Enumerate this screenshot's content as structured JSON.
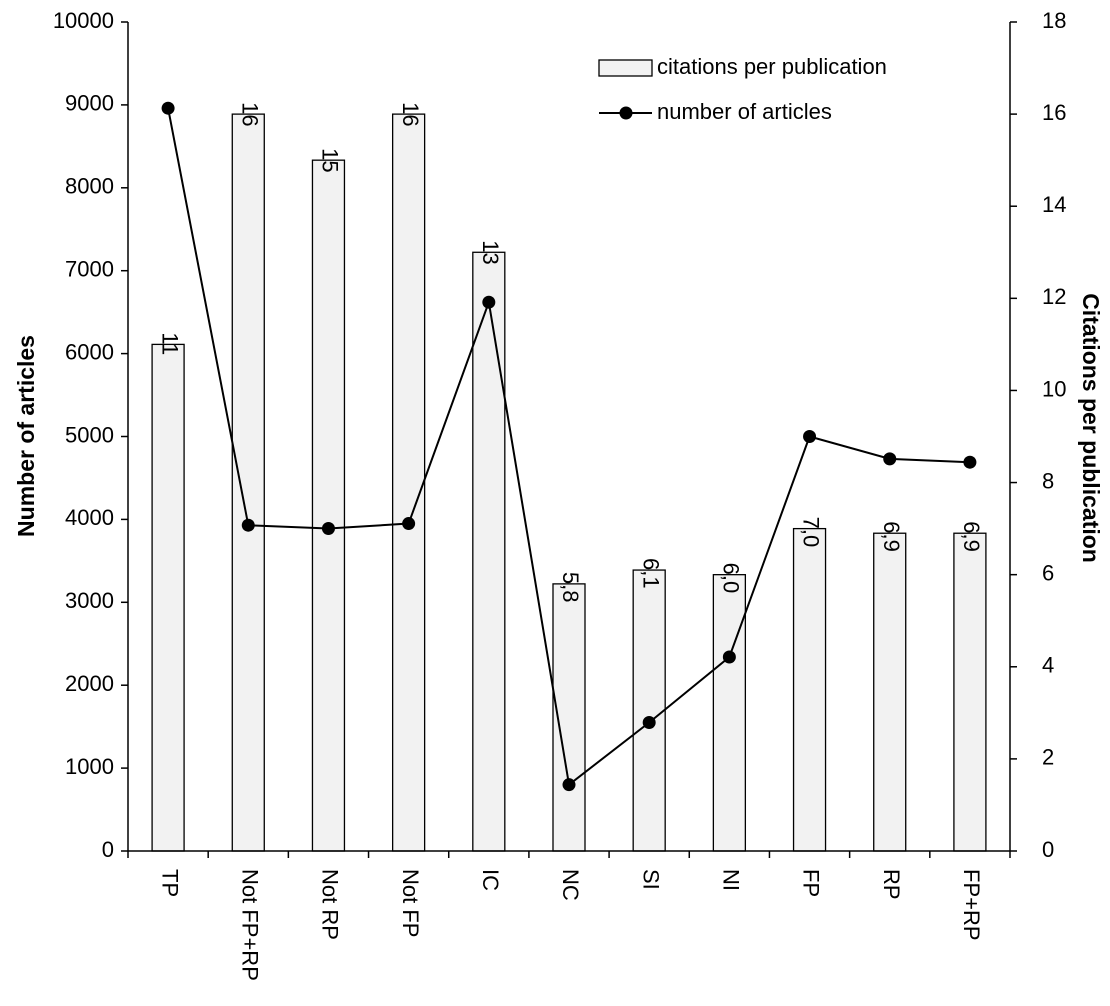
{
  "chart_data": {
    "type": "bar",
    "categories": [
      "TP",
      "Not FP+RP",
      "Not RP",
      "Not FP",
      "IC",
      "NC",
      "SI",
      "NI",
      "FP",
      "RP",
      "FP+RP"
    ],
    "series": [
      {
        "name": "citations per publication",
        "kind": "bar",
        "axis": "right",
        "values": [
          11,
          16,
          15,
          16,
          13,
          5.8,
          6.1,
          6.0,
          7.0,
          6.9,
          6.9
        ],
        "labels": [
          "11",
          "16",
          "15",
          "16",
          "13",
          "5,8",
          "6,1",
          "6,0",
          "7,0",
          "6,9",
          "6,9"
        ],
        "fill": "#f2f2f2",
        "stroke": "#000000"
      },
      {
        "name": "number of articles",
        "kind": "line",
        "axis": "left",
        "values": [
          8960,
          3930,
          3890,
          3950,
          6620,
          800,
          1550,
          2340,
          5000,
          4730,
          4690
        ],
        "color": "#000000"
      }
    ],
    "ylabel": "Number of articles",
    "y2label": "Citations per publication",
    "ylim": [
      0,
      10000
    ],
    "y2lim": [
      0,
      18
    ],
    "yticks": [
      "0",
      "1000",
      "2000",
      "3000",
      "4000",
      "5000",
      "6000",
      "7000",
      "8000",
      "9000",
      "10000"
    ],
    "y2ticks": [
      "0",
      "2",
      "4",
      "6",
      "8",
      "10",
      "12",
      "14",
      "16",
      "18"
    ],
    "legend_position": "top-right",
    "grid": false
  }
}
